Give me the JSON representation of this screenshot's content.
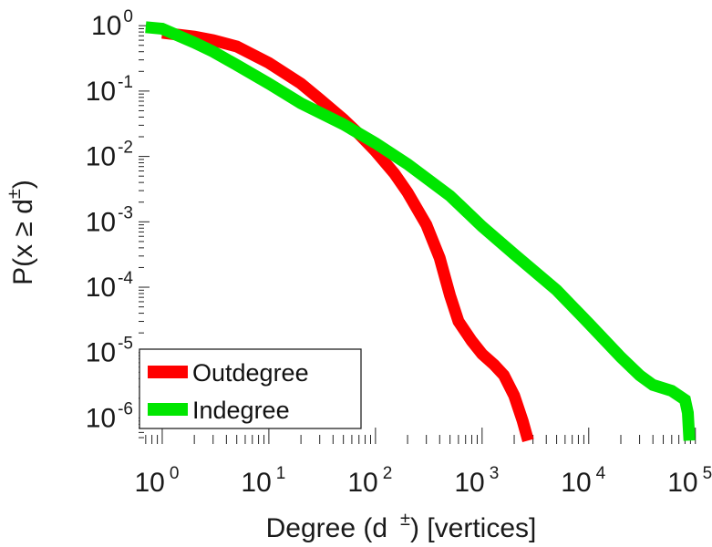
{
  "chart_data": {
    "type": "line",
    "xscale": "log",
    "yscale": "log",
    "xlim": [
      0.6,
      120000
    ],
    "ylim": [
      4e-07,
      1.3
    ],
    "xlabel": {
      "main": "Degree (d",
      "sup": "±",
      "rest": ") [vertices]"
    },
    "ylabel": {
      "main": "P(x ≥ d",
      "sup": "±",
      "rest": ")"
    },
    "xticks": [
      {
        "value": 1,
        "base": "10",
        "exp": "0"
      },
      {
        "value": 10,
        "base": "10",
        "exp": "1"
      },
      {
        "value": 100,
        "base": "10",
        "exp": "2"
      },
      {
        "value": 1000,
        "base": "10",
        "exp": "3"
      },
      {
        "value": 10000,
        "base": "10",
        "exp": "4"
      },
      {
        "value": 100000,
        "base": "10",
        "exp": "5"
      }
    ],
    "yticks": [
      {
        "value": 1,
        "base": "10",
        "exp": "0"
      },
      {
        "value": 0.1,
        "base": "10",
        "exp": "-1"
      },
      {
        "value": 0.01,
        "base": "10",
        "exp": "-2"
      },
      {
        "value": 0.001,
        "base": "10",
        "exp": "-3"
      },
      {
        "value": 0.0001,
        "base": "10",
        "exp": "-4"
      },
      {
        "value": 1e-05,
        "base": "10",
        "exp": "-5"
      },
      {
        "value": 1e-06,
        "base": "10",
        "exp": "-6"
      }
    ],
    "legend_position": "bottom-left",
    "series": [
      {
        "name": "Outdegree",
        "color": "#ff0000",
        "x": [
          1,
          2,
          3,
          5,
          10,
          20,
          30,
          50,
          70,
          100,
          150,
          200,
          300,
          400,
          500,
          600,
          800,
          1000,
          1300,
          1600,
          2000,
          2400,
          2700
        ],
        "y": [
          0.78,
          0.68,
          0.6,
          0.48,
          0.27,
          0.13,
          0.075,
          0.037,
          0.022,
          0.012,
          0.0055,
          0.0028,
          0.0009,
          0.00028,
          7.5e-05,
          3e-05,
          1.5e-05,
          9.5e-06,
          6.5e-06,
          4.5e-06,
          2.2e-06,
          9e-07,
          4.5e-07
        ]
      },
      {
        "name": "Indegree",
        "color": "#00e600",
        "x": [
          0.7,
          1,
          2,
          3,
          5,
          10,
          20,
          50,
          100,
          200,
          500,
          1000,
          2000,
          5000,
          10000,
          20000,
          30000,
          40000,
          60000,
          80000,
          85000,
          88000
        ],
        "y": [
          0.95,
          0.9,
          0.55,
          0.4,
          0.25,
          0.13,
          0.065,
          0.031,
          0.016,
          0.0076,
          0.0025,
          0.00085,
          0.00032,
          9e-05,
          2.8e-05,
          8.5e-06,
          4.5e-06,
          3.2e-06,
          2.6e-06,
          1.9e-06,
          1.2e-06,
          4.5e-07
        ]
      }
    ]
  }
}
